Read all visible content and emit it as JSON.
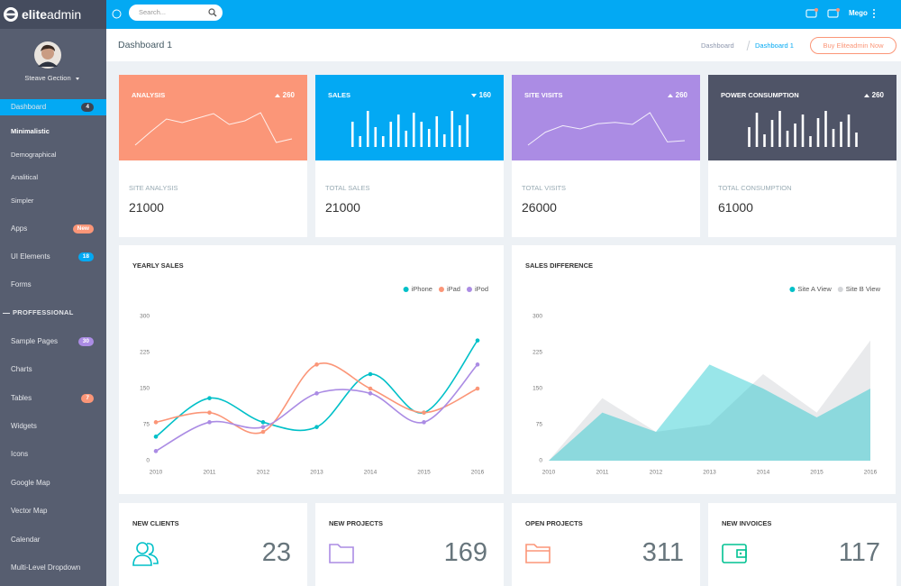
{
  "topbar": {
    "logo": {
      "bold": "elite",
      "light": "admin"
    },
    "search_placeholder": "Search...",
    "user": "Mego"
  },
  "sidebar": {
    "profile_name": "Steave Gection",
    "menu_top": [
      {
        "label": "Dashboard",
        "badge": 4,
        "badge_color": "#3d4452",
        "active": true,
        "children": [
          "Minimalistic",
          "Demographical",
          "Analitical",
          "Simpler"
        ],
        "active_child": 0
      },
      {
        "label": "Apps",
        "badge": "New",
        "badge_color": "#fb9678"
      },
      {
        "label": "UI Elements",
        "badge": 18,
        "badge_color": "#03a9f3"
      },
      {
        "label": "Forms"
      }
    ],
    "section_label": "PROFFESSIONAL",
    "menu_bottom": [
      {
        "label": "Sample Pages",
        "badge": 30,
        "badge_color": "#ab8ce4"
      },
      {
        "label": "Charts"
      },
      {
        "label": "Tables",
        "badge": 7,
        "badge_color": "#fb9678"
      },
      {
        "label": "Widgets"
      },
      {
        "label": "Icons"
      },
      {
        "label": "Google Map"
      },
      {
        "label": "Vector Map"
      },
      {
        "label": "Calendar"
      },
      {
        "label": "Multi-Level Dropdown"
      }
    ]
  },
  "breadcrumb": {
    "title": "Dashboard 1",
    "items": [
      "Dashboard",
      "Dashboard 1"
    ],
    "button": "Buy Eliteadmin Now"
  },
  "stat_cards": [
    {
      "title": "ANALYSIS",
      "change": 260,
      "trend": "up",
      "label": "SITE ANALYSIS",
      "value": 21000,
      "color": "#fb9678"
    },
    {
      "title": "SALES",
      "change": 160,
      "trend": "down",
      "label": "TOTAL SALES",
      "value": 21000,
      "color": "#03a9f3"
    },
    {
      "title": "SITE VISITS",
      "change": 260,
      "trend": "up",
      "label": "TOTAL VISITS",
      "value": 26000,
      "color": "#ab8ce4"
    },
    {
      "title": "POWER CONSUMPTION",
      "change": 260,
      "trend": "up",
      "label": "TOTAL CONSUMPTION",
      "value": 61000,
      "color": "#4f5467"
    }
  ],
  "count_cards": [
    {
      "title": "NEW CLIENTS",
      "value": 23,
      "color": "#01c0c8"
    },
    {
      "title": "NEW PROJECTS",
      "value": 169,
      "color": "#ab8ce4"
    },
    {
      "title": "OPEN PROJECTS",
      "value": 311,
      "color": "#fb9678"
    },
    {
      "title": "NEW INVOICES",
      "value": 117,
      "color": "#00c292"
    }
  ],
  "chart_data": [
    {
      "type": "line",
      "color": "#ffffff",
      "values": [
        10,
        25,
        39,
        35,
        40,
        45,
        33,
        37,
        46,
        13,
        17
      ]
    },
    {
      "type": "bar",
      "color": "#ffffff",
      "values": [
        28,
        12,
        40,
        22,
        12,
        28,
        36,
        18,
        38,
        28,
        20,
        34,
        14,
        40,
        24,
        36
      ]
    },
    {
      "type": "line",
      "color": "#ffffff",
      "values": [
        10,
        30,
        40,
        35,
        43,
        45,
        42,
        60,
        15,
        17
      ]
    },
    {
      "type": "bar",
      "color": "#ffffff",
      "values": [
        22,
        38,
        14,
        30,
        40,
        18,
        26,
        36,
        12,
        32,
        40,
        20,
        28,
        36,
        16
      ]
    },
    {
      "type": "line",
      "title": "YEARLY SALES",
      "curve": "smooth",
      "grid": false,
      "legend": "top-right",
      "x": [
        2010,
        2011,
        2012,
        2013,
        2014,
        2015,
        2016
      ],
      "xlim": [
        2010,
        2016
      ],
      "xticks": [
        2010,
        2011,
        2012,
        2013,
        2014,
        2015,
        2016
      ],
      "ylim": [
        0,
        300
      ],
      "yticks": [
        0,
        75,
        150,
        225,
        300
      ],
      "series": [
        {
          "name": "iPhone",
          "color": "#01c0c8",
          "values": [
            50,
            130,
            80,
            70,
            180,
            100,
            250
          ]
        },
        {
          "name": "iPad",
          "color": "#fb9678",
          "values": [
            80,
            100,
            60,
            200,
            150,
            100,
            150
          ]
        },
        {
          "name": "iPod",
          "color": "#ab8ce4",
          "values": [
            20,
            80,
            70,
            140,
            140,
            80,
            200
          ]
        }
      ]
    },
    {
      "type": "area",
      "title": "SALES DIFFERENCE",
      "grid": false,
      "legend": "top-right",
      "x": [
        2010,
        2011,
        2012,
        2013,
        2014,
        2015,
        2016
      ],
      "xlim": [
        2010,
        2016
      ],
      "xticks": [
        2010,
        2011,
        2012,
        2013,
        2014,
        2015,
        2016
      ],
      "ylim": [
        0,
        300
      ],
      "yticks": [
        0,
        75,
        150,
        225,
        300
      ],
      "series": [
        {
          "name": "Site A View",
          "color": "#01c0c8",
          "values": [
            0,
            100,
            60,
            200,
            150,
            90,
            150
          ]
        },
        {
          "name": "Site B View",
          "color": "#d4d6d9",
          "values": [
            0,
            130,
            60,
            75,
            180,
            100,
            250
          ]
        }
      ]
    }
  ]
}
